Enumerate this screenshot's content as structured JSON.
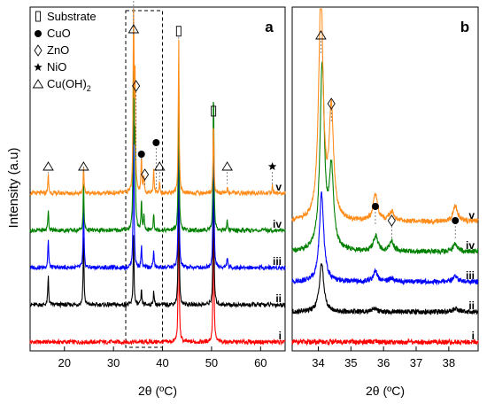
{
  "chart_data": [
    {
      "panel": "a",
      "type": "line",
      "xlabel": "2θ (ºC)",
      "ylabel": "Intensity (a.u)",
      "xlim": [
        13,
        65
      ],
      "xticks": [
        20,
        30,
        40,
        50,
        60
      ],
      "legend": {
        "placement": "top-left",
        "entries": [
          {
            "symbol": "▯",
            "label": "Substrate"
          },
          {
            "symbol": "●",
            "label": "CuO"
          },
          {
            "symbol": "◇",
            "label": "ZnO"
          },
          {
            "symbol": "★",
            "label": "NiO"
          },
          {
            "symbol": "△",
            "label": "Cu(OH)2"
          }
        ]
      },
      "highlight_box_x": [
        32.5,
        40
      ],
      "series": [
        {
          "name": "i",
          "color": "#ff0000",
          "baseline": 0,
          "peaks": [
            [
              43.3,
              4.2
            ],
            [
              50.4,
              4.0
            ]
          ]
        },
        {
          "name": "ii",
          "color": "#000000",
          "baseline": 1.0,
          "peaks": [
            [
              16.7,
              0.8
            ],
            [
              23.9,
              1.9
            ],
            [
              34.1,
              1.9
            ],
            [
              35.7,
              0.4
            ],
            [
              38.2,
              0.4
            ],
            [
              43.3,
              4.2
            ],
            [
              50.4,
              4.0
            ]
          ]
        },
        {
          "name": "iii",
          "color": "#0000ff",
          "baseline": 2.0,
          "peaks": [
            [
              16.7,
              0.8
            ],
            [
              23.9,
              1.8
            ],
            [
              34.1,
              4.0
            ],
            [
              35.7,
              0.6
            ],
            [
              38.2,
              0.5
            ],
            [
              43.3,
              4.2
            ],
            [
              50.4,
              4.2
            ],
            [
              53.2,
              0.3
            ]
          ]
        },
        {
          "name": "iv",
          "color": "#008000",
          "baseline": 3.0,
          "peaks": [
            [
              16.7,
              0.6
            ],
            [
              23.9,
              1.3
            ],
            [
              34.1,
              5.2
            ],
            [
              34.4,
              2.4
            ],
            [
              35.7,
              0.8
            ],
            [
              36.2,
              0.4
            ],
            [
              38.2,
              0.5
            ],
            [
              43.3,
              4.2
            ],
            [
              50.4,
              4.0
            ],
            [
              53.2,
              0.3
            ]
          ]
        },
        {
          "name": "v",
          "color": "#ff8c1a",
          "baseline": 4.0,
          "peaks": [
            [
              16.7,
              0.5
            ],
            [
              23.9,
              0.7
            ],
            [
              34.1,
              5.5
            ],
            [
              34.4,
              3.0
            ],
            [
              35.7,
              1.0
            ],
            [
              36.2,
              0.5
            ],
            [
              38.2,
              0.7
            ],
            [
              39.4,
              0.3
            ],
            [
              43.3,
              4.2
            ],
            [
              50.4,
              2.0
            ],
            [
              53.2,
              0.2
            ],
            [
              62.4,
              0.2
            ]
          ]
        }
      ],
      "annotations": [
        {
          "x": 16.7,
          "symbol": "△"
        },
        {
          "x": 23.9,
          "symbol": "△"
        },
        {
          "x": 34.1,
          "symbol": "△"
        },
        {
          "x": 34.6,
          "symbol": "◇"
        },
        {
          "x": 35.7,
          "symbol": "●"
        },
        {
          "x": 36.4,
          "symbol": "◇"
        },
        {
          "x": 38.7,
          "symbol": "●"
        },
        {
          "x": 39.4,
          "symbol": "△"
        },
        {
          "x": 43.3,
          "symbol": "▯"
        },
        {
          "x": 50.4,
          "symbol": "▯"
        },
        {
          "x": 53.2,
          "symbol": "△"
        },
        {
          "x": 62.4,
          "symbol": "★"
        }
      ]
    },
    {
      "panel": "b",
      "type": "line",
      "xlabel": "2θ (ºC)",
      "xlim": [
        33.2,
        38.9
      ],
      "xticks": [
        34,
        35,
        36,
        37,
        38
      ],
      "series": [
        {
          "name": "i",
          "color": "#ff0000",
          "baseline": 0,
          "peaks": []
        },
        {
          "name": "ii",
          "color": "#000000",
          "baseline": 1.0,
          "peaks": [
            [
              34.1,
              2.5
            ],
            [
              35.7,
              0.2
            ],
            [
              38.2,
              0.2
            ]
          ]
        },
        {
          "name": "iii",
          "color": "#0000ff",
          "baseline": 2.0,
          "peaks": [
            [
              34.1,
              4.5
            ],
            [
              35.75,
              0.5
            ],
            [
              36.25,
              0.2
            ],
            [
              38.2,
              0.3
            ]
          ]
        },
        {
          "name": "iv",
          "color": "#008000",
          "baseline": 3.0,
          "peaks": [
            [
              34.12,
              9.5
            ],
            [
              34.4,
              4.0
            ],
            [
              35.76,
              0.8
            ],
            [
              36.25,
              0.5
            ],
            [
              38.2,
              0.4
            ]
          ]
        },
        {
          "name": "v",
          "color": "#ff8c1a",
          "baseline": 4.0,
          "peaks": [
            [
              34.08,
              11.8
            ],
            [
              34.4,
              5.5
            ],
            [
              35.75,
              1.4
            ],
            [
              36.25,
              0.5
            ],
            [
              38.2,
              0.8
            ]
          ]
        }
      ],
      "annotations": [
        {
          "x": 34.08,
          "symbol": "△"
        },
        {
          "x": 34.4,
          "symbol": "◇"
        },
        {
          "x": 35.75,
          "symbol": "●"
        },
        {
          "x": 36.25,
          "symbol": "◇"
        },
        {
          "x": 38.2,
          "symbol": "●"
        }
      ]
    }
  ]
}
